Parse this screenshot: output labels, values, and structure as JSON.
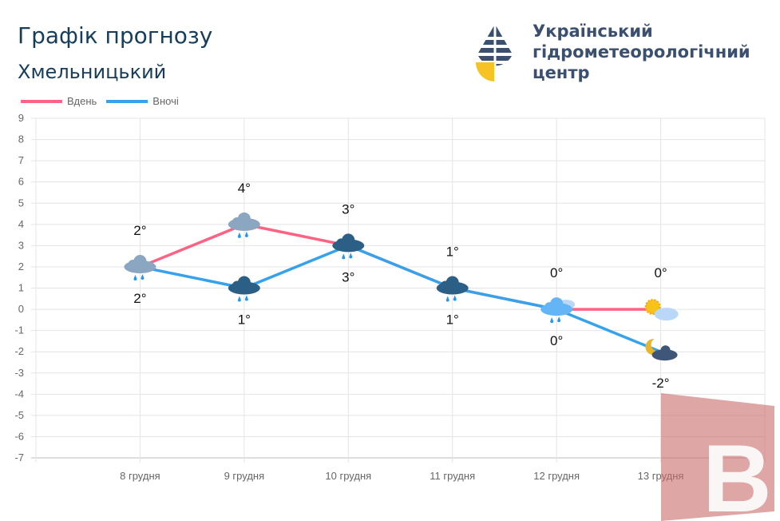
{
  "header": {
    "title": "Графік прогнозу",
    "city": "Хмельницький"
  },
  "org": {
    "line1": "Український",
    "line2": "гідрометеорологічний",
    "line3": "центр"
  },
  "colors": {
    "day": "#ff6384",
    "night": "#36a2eb"
  },
  "chart_data": {
    "type": "line",
    "categories": [
      "8 грудня",
      "9 грудня",
      "10 грудня",
      "11 грудня",
      "12 грудня",
      "13 грудня"
    ],
    "series": [
      {
        "name": "Вдень",
        "values": [
          2,
          4,
          3,
          1,
          0,
          0
        ],
        "labels": [
          "2°",
          "4°",
          "3°",
          "1°",
          "0°",
          "0°"
        ],
        "icons": [
          "cloud-rain",
          "cloud-rain",
          "cloud-rain-snow",
          "cloud-snow",
          "cloud-sleet",
          "sun-cloud"
        ]
      },
      {
        "name": "Вночі",
        "values": [
          2,
          1,
          3,
          1,
          0,
          -2
        ],
        "labels": [
          "2°",
          "1°",
          "3°",
          "1°",
          "0°",
          "-2°"
        ],
        "icons": [
          "cloud-rain",
          "cloud-rain-snow",
          "cloud-rain-snow",
          "cloud-snow",
          "cloud-sleet",
          "moon-cloud"
        ]
      }
    ],
    "yticks": [
      "9",
      "8",
      "7",
      "6",
      "5",
      "4",
      "3",
      "2",
      "1",
      "0",
      "-1",
      "-2",
      "-3",
      "-4",
      "-5",
      "-6",
      "-7"
    ],
    "ylim": [
      -7,
      9
    ],
    "legend": "top-left",
    "grid": true
  }
}
